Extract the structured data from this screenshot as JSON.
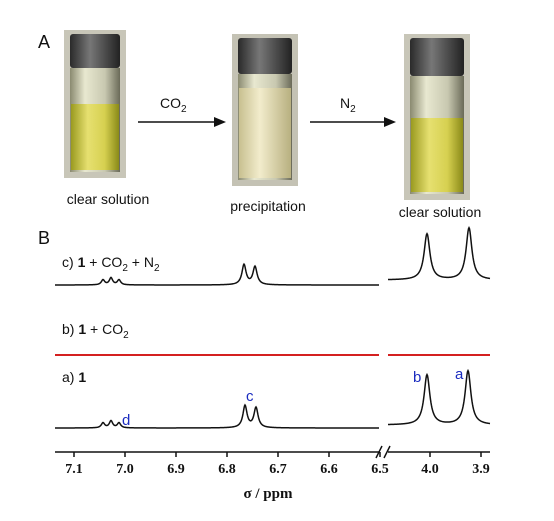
{
  "panel_a": {
    "label": "A",
    "captions": [
      "clear solution",
      "precipitation",
      "clear solution"
    ],
    "arrows": [
      [
        "CO",
        "2"
      ],
      [
        "N",
        "2"
      ]
    ]
  },
  "panel_b": {
    "label": "B",
    "spectra": [
      {
        "label": [
          "c) ",
          "1",
          " + CO",
          "2",
          " + N",
          "2"
        ]
      },
      {
        "label": [
          "b) ",
          "1",
          " + CO",
          "2"
        ]
      },
      {
        "label": [
          "a) ",
          "1"
        ]
      }
    ],
    "peak_labels": [
      "d",
      "c",
      "b",
      "a"
    ],
    "ticks_left": [
      "7.1",
      "7.0",
      "6.9",
      "6.8",
      "6.7",
      "6.6",
      "6.5"
    ],
    "ticks_right": [
      "4.0",
      "3.9"
    ],
    "axis_label": "σ / ppm"
  }
}
